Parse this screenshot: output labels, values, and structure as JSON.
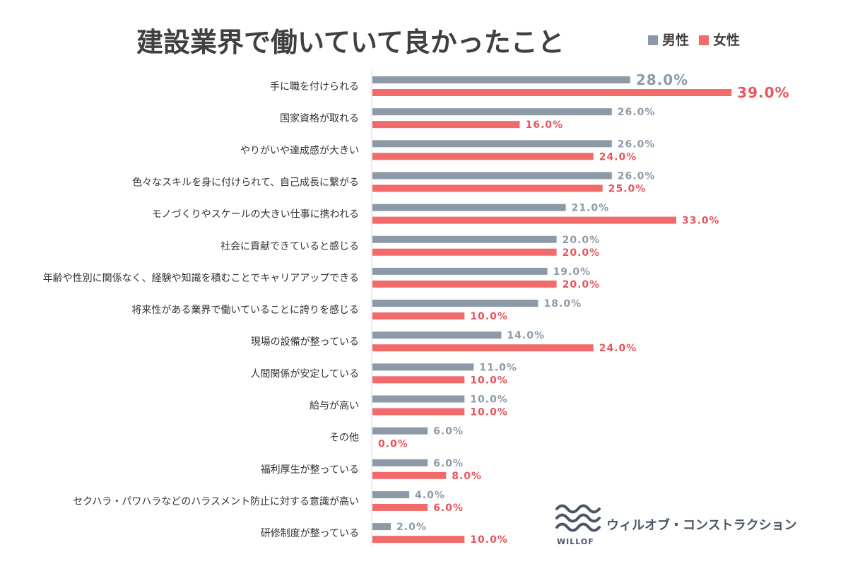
{
  "chart_data": {
    "type": "bar",
    "orientation": "horizontal",
    "title": "建設業界で働いていて良かったこと",
    "categories": [
      "手に職を付けられる",
      "国家資格が取れる",
      "やりがいや達成感が大きい",
      "色々なスキルを身に付けられて、自己成長に繋がる",
      "モノづくりやスケールの大きい仕事に携われる",
      "社会に貢献できていると感じる",
      "年齢や性別に関係なく、経験や知識を積むことでキャリアアップできる",
      "将来性がある業界で働いていることに誇りを感じる",
      "現場の設備が整っている",
      "人間関係が安定している",
      "給与が高い",
      "その他",
      "福利厚生が整っている",
      "セクハラ・パワハラなどのハラスメント防止に対する意識が高い",
      "研修制度が整っている"
    ],
    "series": [
      {
        "name": "男性",
        "color": "#8c9aa8",
        "values": [
          28,
          26,
          26,
          26,
          21,
          20,
          19,
          18,
          14,
          11,
          10,
          6,
          6,
          4,
          2
        ],
        "labels": [
          "28.0%",
          "26.0%",
          "26.0%",
          "26.0%",
          "21.0%",
          "20.0%",
          "19.0%",
          "18.0%",
          "14.0%",
          "11.0%",
          "10.0%",
          "6.0%",
          "6.0%",
          "4.0%",
          "2.0%"
        ]
      },
      {
        "name": "女性",
        "color": "#f26b6b",
        "values": [
          39,
          16,
          24,
          25,
          33,
          20,
          20,
          10,
          24,
          10,
          10,
          0,
          8,
          6,
          10
        ],
        "labels": [
          "39.0%",
          "16.0%",
          "24.0%",
          "25.0%",
          "33.0%",
          "20.0%",
          "20.0%",
          "10.0%",
          "24.0%",
          "10.0%",
          "10.0%",
          "0.0%",
          "8.0%",
          "6.0%",
          "10.0%"
        ]
      }
    ],
    "xlim": [
      0,
      39
    ],
    "grid": false,
    "legend": "top-right"
  },
  "brand": {
    "name": "ウィルオブ・コンストラクション",
    "logo_text": "WILLOF",
    "icon": "wave-logo-icon"
  }
}
